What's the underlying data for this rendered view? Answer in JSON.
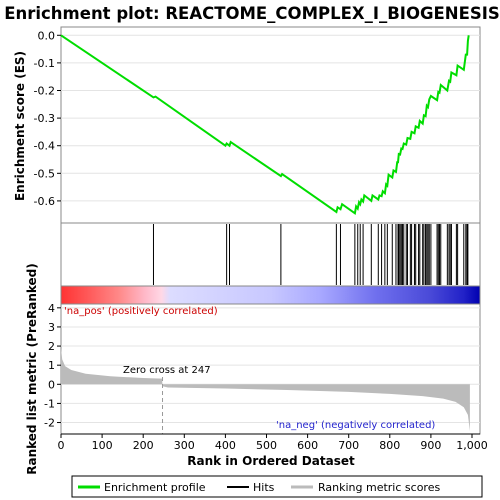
{
  "chart_data": {
    "type": "line",
    "title": "Enrichment plot: REACTOME_COMPLEX_I_BIOGENESIS",
    "es_panel": {
      "ylabel": "Enrichment score (ES)",
      "ylim": [
        -0.68,
        0.03
      ],
      "yticks": [
        0.0,
        -0.1,
        -0.2,
        -0.3,
        -0.4,
        -0.5,
        -0.6
      ],
      "series_name": "Enrichment profile",
      "color": "#00dd00",
      "points": [
        [
          0,
          0.0
        ],
        [
          225,
          -0.225
        ],
        [
          230,
          -0.222
        ],
        [
          400,
          -0.4
        ],
        [
          403,
          -0.392
        ],
        [
          410,
          -0.4
        ],
        [
          413,
          -0.387
        ],
        [
          535,
          -0.51
        ],
        [
          538,
          -0.503
        ],
        [
          670,
          -0.64
        ],
        [
          673,
          -0.623
        ],
        [
          680,
          -0.63
        ],
        [
          684,
          -0.612
        ],
        [
          715,
          -0.645
        ],
        [
          718,
          -0.62
        ],
        [
          722,
          -0.628
        ],
        [
          725,
          -0.605
        ],
        [
          728,
          -0.612
        ],
        [
          731,
          -0.595
        ],
        [
          735,
          -0.602
        ],
        [
          738,
          -0.58
        ],
        [
          755,
          -0.6
        ],
        [
          758,
          -0.58
        ],
        [
          772,
          -0.595
        ],
        [
          775,
          -0.58
        ],
        [
          780,
          -0.583
        ],
        [
          783,
          -0.565
        ],
        [
          788,
          -0.572
        ],
        [
          791,
          -0.54
        ],
        [
          794,
          -0.545
        ],
        [
          797,
          -0.505
        ],
        [
          806,
          -0.515
        ],
        [
          809,
          -0.49
        ],
        [
          815,
          -0.495
        ],
        [
          818,
          -0.46
        ],
        [
          820,
          -0.46
        ],
        [
          822,
          -0.43
        ],
        [
          825,
          -0.432
        ],
        [
          828,
          -0.41
        ],
        [
          831,
          -0.412
        ],
        [
          834,
          -0.392
        ],
        [
          840,
          -0.396
        ],
        [
          843,
          -0.372
        ],
        [
          850,
          -0.375
        ],
        [
          853,
          -0.35
        ],
        [
          860,
          -0.355
        ],
        [
          863,
          -0.33
        ],
        [
          870,
          -0.335
        ],
        [
          873,
          -0.31
        ],
        [
          880,
          -0.32
        ],
        [
          883,
          -0.29
        ],
        [
          887,
          -0.293
        ],
        [
          890,
          -0.255
        ],
        [
          893,
          -0.26
        ],
        [
          896,
          -0.232
        ],
        [
          900,
          -0.22
        ],
        [
          915,
          -0.235
        ],
        [
          918,
          -0.205
        ],
        [
          921,
          -0.208
        ],
        [
          924,
          -0.18
        ],
        [
          940,
          -0.2
        ],
        [
          944,
          -0.165
        ],
        [
          947,
          -0.168
        ],
        [
          950,
          -0.135
        ],
        [
          962,
          -0.145
        ],
        [
          965,
          -0.11
        ],
        [
          980,
          -0.125
        ],
        [
          985,
          -0.07
        ],
        [
          988,
          -0.07
        ],
        [
          990,
          -0.02
        ],
        [
          992,
          0.0
        ]
      ]
    },
    "hits_panel": {
      "series_name": "Hits",
      "positions": [
        225,
        403,
        410,
        535,
        670,
        680,
        715,
        722,
        728,
        735,
        755,
        772,
        780,
        788,
        794,
        806,
        815,
        820,
        822,
        825,
        828,
        831,
        834,
        840,
        843,
        850,
        853,
        860,
        863,
        870,
        873,
        880,
        883,
        887,
        890,
        893,
        896,
        900,
        915,
        918,
        921,
        924,
        940,
        944,
        947,
        950,
        962,
        965,
        980,
        985,
        988,
        990
      ]
    },
    "metric_panel": {
      "ylabel": "Ranked list metric (PreRanked)",
      "xlabel": "Rank in Ordered Dataset",
      "ylim": [
        -2.6,
        4.2
      ],
      "yticks": [
        4,
        3,
        2,
        1,
        0,
        -1,
        -2
      ],
      "xlim": [
        0,
        1000
      ],
      "xticks": [
        0,
        100,
        200,
        300,
        400,
        500,
        600,
        700,
        800,
        900,
        1000
      ],
      "xtick_labels": [
        "0",
        "100",
        "200",
        "300",
        "400",
        "500",
        "600",
        "700",
        "800",
        "900",
        "1,000"
      ],
      "series_name": "Ranking metric scores",
      "color": "#bbbbbb",
      "n_genes": 995,
      "profile": [
        [
          0,
          1.9
        ],
        [
          3,
          1.3
        ],
        [
          10,
          0.95
        ],
        [
          25,
          0.75
        ],
        [
          60,
          0.55
        ],
        [
          120,
          0.42
        ],
        [
          200,
          0.33
        ],
        [
          246,
          0.3
        ],
        [
          247,
          -0.1
        ],
        [
          260,
          -0.17
        ],
        [
          400,
          -0.22
        ],
        [
          550,
          -0.3
        ],
        [
          700,
          -0.4
        ],
        [
          800,
          -0.5
        ],
        [
          880,
          -0.62
        ],
        [
          930,
          -0.75
        ],
        [
          960,
          -0.92
        ],
        [
          980,
          -1.2
        ],
        [
          990,
          -1.6
        ],
        [
          995,
          -2.45
        ]
      ],
      "zero_cross_text": "Zero cross at 247",
      "zero_cross": 247,
      "pos_label": "'na_pos' (positively correlated)",
      "neg_label": "'na_neg' (negatively correlated)"
    },
    "legend": {
      "entries": [
        "Enrichment profile",
        "Hits",
        "Ranking metric scores"
      ],
      "placement": "bottom"
    }
  }
}
